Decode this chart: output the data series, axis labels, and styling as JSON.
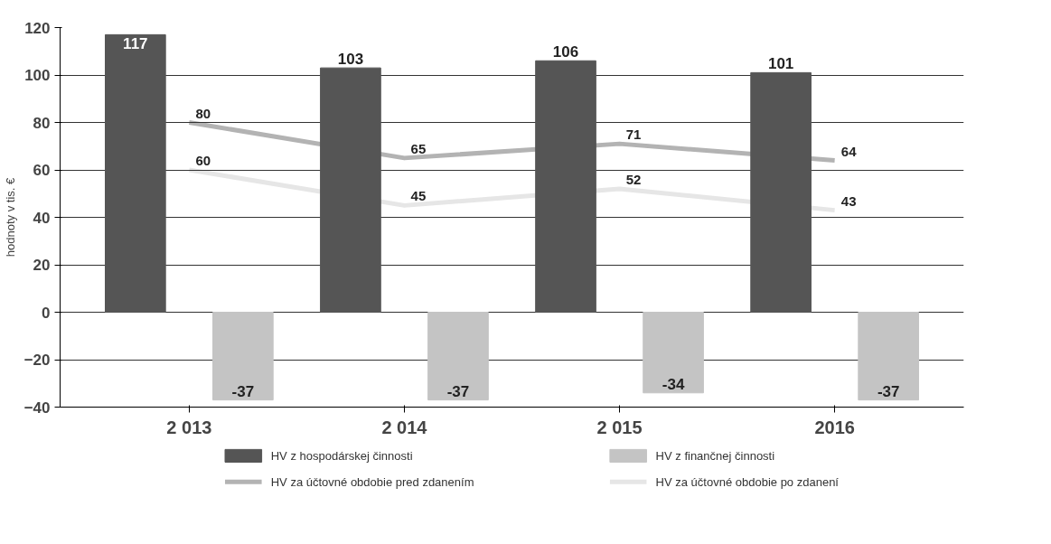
{
  "chart_data": {
    "type": "bar",
    "ylabel": "hodnoty v tis. €",
    "categories": [
      "2 013",
      "2 014",
      "2 015",
      "2016"
    ],
    "series": [
      {
        "name": "HV z hospodárskej činnosti",
        "color": "#555555",
        "values": [
          117,
          103,
          106,
          101
        ]
      },
      {
        "name": "HV z finančnej činnosti",
        "color": "#c4c4c4",
        "values": [
          -37,
          -37,
          -34,
          -37
        ]
      },
      {
        "name": "HV za účtovné obdobie pred zdanením",
        "type": "line",
        "color": "#b3b3b3",
        "values": [
          80,
          65,
          71,
          64
        ]
      },
      {
        "name": "HV za účtovné obdobie po zdanení",
        "type": "line",
        "color": "#e6e6e6",
        "values": [
          60,
          45,
          52,
          43
        ]
      }
    ],
    "ylim": [
      -40,
      120
    ],
    "yticks": [
      -40,
      -20,
      0,
      20,
      40,
      60,
      80,
      100,
      120
    ],
    "grid": "y",
    "data_labels": true,
    "legend": "bottom"
  }
}
